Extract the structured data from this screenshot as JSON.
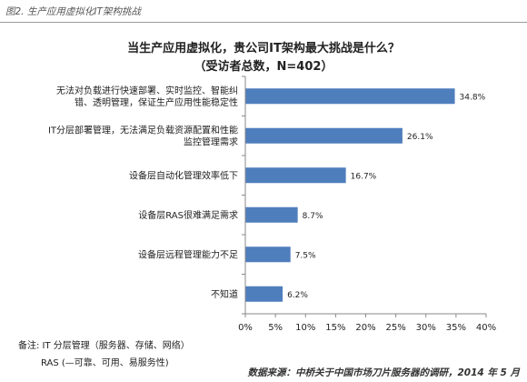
{
  "figure_label": "图2. 生产应用虚拟化IT架构挑战",
  "notes": {
    "line1": "备注: IT 分层管理（服务器、存储、网络）",
    "line2": "RAS (—可靠、可用、易服务性)"
  },
  "source": "数据来源：中桥关于中国市场刀片服务器的调研，2014 年 5 月",
  "colors": {
    "bar": "#4f7ebd",
    "axis": "#8a8a8a",
    "header_rule": "#9a9a9a"
  },
  "chart_data": {
    "type": "bar",
    "orientation": "horizontal",
    "title": "当生产应用虚拟化，贵公司IT架构最大挑战是什么？",
    "subtitle": "（受访者总数，N=402）",
    "categories": [
      [
        "无法对负载进行快速部署、实时监控、智能纠",
        "错、透明管理，保证生产应用性能稳定性"
      ],
      [
        "IT分层部署管理，无法满足负载资源配置和性能",
        "监控管理需求"
      ],
      [
        "设备层自动化管理效率低下"
      ],
      [
        "设备层RAS很难满足需求"
      ],
      [
        "设备层远程管理能力不足"
      ],
      [
        "不知道"
      ]
    ],
    "values": [
      34.8,
      26.1,
      16.7,
      8.7,
      7.5,
      6.2
    ],
    "value_labels": [
      "34.8%",
      "26.1%",
      "16.7%",
      "8.7%",
      "7.5%",
      "6.2%"
    ],
    "xlim": [
      0,
      40
    ],
    "xticks": [
      0,
      5,
      10,
      15,
      20,
      25,
      30,
      35,
      40
    ],
    "xtick_labels": [
      "0%",
      "5%",
      "10%",
      "15%",
      "20%",
      "25%",
      "30%",
      "35%",
      "40%"
    ],
    "xlabel": "",
    "ylabel": "",
    "grid": false,
    "legend": "none"
  }
}
